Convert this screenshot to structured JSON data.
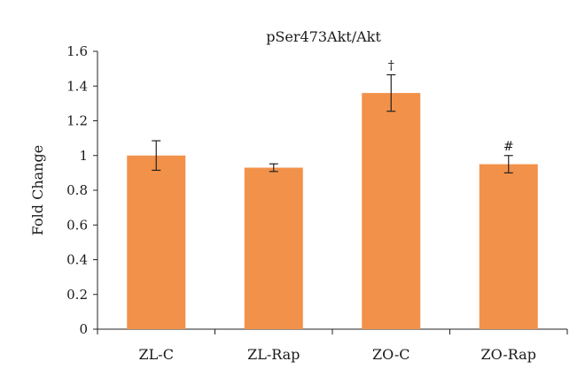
{
  "chart_data": {
    "type": "bar",
    "title": "pSer473Akt/Akt",
    "xlabel": "",
    "ylabel": "Fold Change",
    "ylim": [
      0,
      1.6
    ],
    "yticks": [
      "0",
      "0.2",
      "0.4",
      "0.6",
      "0.8",
      "1",
      "1.2",
      "1.4",
      "1.6"
    ],
    "grid": false,
    "legend": "none",
    "categories": [
      "ZL-C",
      "ZL-Rap",
      "ZO-C",
      "ZO-Rap"
    ],
    "values": [
      1.0,
      0.93,
      1.36,
      0.95
    ],
    "errors": [
      0.085,
      0.022,
      0.105,
      0.05
    ],
    "annotations": [
      "",
      "",
      "†",
      "#"
    ],
    "bar_color": "#f29149"
  }
}
